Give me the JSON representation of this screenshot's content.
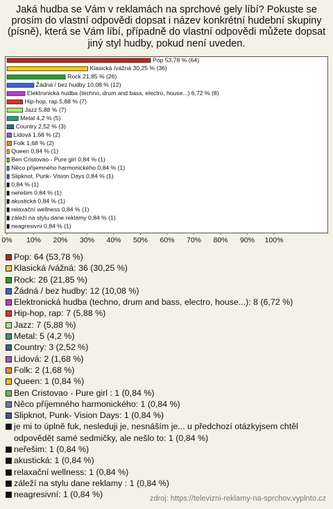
{
  "chart_data": {
    "type": "bar",
    "orientation": "horizontal",
    "title": "Jaká hudba se Vám v reklamách na sprchové gely líbí? Pokuste se prosím do vlastní odpovědi dopsat i název konkrétní hudební skupiny (písně), která se Vám líbí, případně do vlastní odpovědi můžete dopsat jiný styl hudby, pokud není uveden.",
    "categories": [
      "Pop: 64 (53,78 %)",
      "Klasická /vážná: 36 (30,25 %)",
      "Rock: 26 (21,85 %)",
      "Žádná / bez hudby: 12 (10,08 %)",
      "Elektronická hudba (techno, drum and bass, electro, house...): 8 (6,72 %)",
      "Hip-hop, rap: 7 (5,88 %)",
      "Jazz: 7 (5,88 %)",
      "Metal: 5 (4,2 %)",
      "Country: 3 (2,52 %)",
      "Lidová: 2 (1,68 %)",
      "Folk: 2 (1,68 %)",
      "Queen: 1 (0,84 %)",
      "Ben Cristovao - Pure girl : 1 (0,84 %)",
      "Něco příjemného harmonického: 1 (0,84 %)",
      "Slipknot,  Punk- Vision Days: 1 (0,84 %)",
      "je mi to úplně fuk, nesleduji je, nesnáším je... u předchozí otázkyjsem chtěl odpovědět samé sedmičky, ale nešlo to: 1 (0,84 %)",
      "neřešim: 1 (0,84 %)",
      "akustická: 1 (0,84 %)",
      "relaxační wellness: 1 (0,84 %)",
      "záleží na stylu dane reklamy : 1 (0,84 %)",
      "neagresivní: 1 (0,84 %)"
    ],
    "values": [
      53.78,
      30.25,
      21.85,
      10.08,
      6.72,
      5.88,
      5.88,
      4.2,
      2.52,
      1.68,
      1.68,
      0.84,
      0.84,
      0.84,
      0.84,
      0.84,
      0.84,
      0.84,
      0.84,
      0.84,
      0.84
    ],
    "value_labels": [
      "Pop 53,78 % (64)",
      "Klasická /vážná 30,25 % (36)",
      "Rock 21,85 % (26)",
      "Žádná / bez hudby 10,08 % (12)",
      "Elektronická hudba (techno, drum and bass, electro, house...) 6,72 % (8)",
      "Hip-hop, rap 5,88 % (7)",
      "Jazz 5,88 % (7)",
      "Metal 4,2 % (5)",
      "Country 2,52 % (3)",
      "Lidová 1,68 % (2)",
      "Folk 1,68 % (2)",
      "Queen 0,84 % (1)",
      "Ben Cristovao - Pure girl  0,84 % (1)",
      "Něco příjemného harmonického 0,84 % (1)",
      "Slipknot,  Punk- Vision Days 0,84 % (1)",
      "0,84 % (1)",
      "neřešim 0,84 % (1)",
      "akustická 0,84 % (1)",
      "relaxační wellness 0,84 % (1)",
      "záleží na stylu dane reklamy  0,84 % (1)",
      "neagresivní 0,84 % (1)"
    ],
    "colors": [
      "#b8281f",
      "#f5d000",
      "#2aa02a",
      "#3f63e0",
      "#c03cc8",
      "#e0302a",
      "#a6ee66",
      "#2a9a7a",
      "#2e6a90",
      "#9a5ad0",
      "#f08a10",
      "#f8c000",
      "#66c040",
      "#6a78c8",
      "#3a5aa8",
      "#111111",
      "#111111",
      "#111111",
      "#111111",
      "#111111",
      "#111111"
    ],
    "xlim": [
      0,
      100
    ],
    "xticks": [
      {
        "value": 0,
        "label": "0%"
      },
      {
        "value": 10,
        "label": "10%"
      },
      {
        "value": 20,
        "label": "20%"
      },
      {
        "value": 30,
        "label": "30%"
      },
      {
        "value": 40,
        "label": "40%"
      },
      {
        "value": 50,
        "label": "50%"
      },
      {
        "value": 60,
        "label": "60%"
      },
      {
        "value": 70,
        "label": "70%"
      },
      {
        "value": 80,
        "label": "80%"
      },
      {
        "value": 90,
        "label": "90%"
      },
      {
        "value": 100,
        "label": "100%"
      }
    ],
    "source": "zdroj: https://televizni-reklamy-na-sprchov.vyplnto.cz"
  }
}
